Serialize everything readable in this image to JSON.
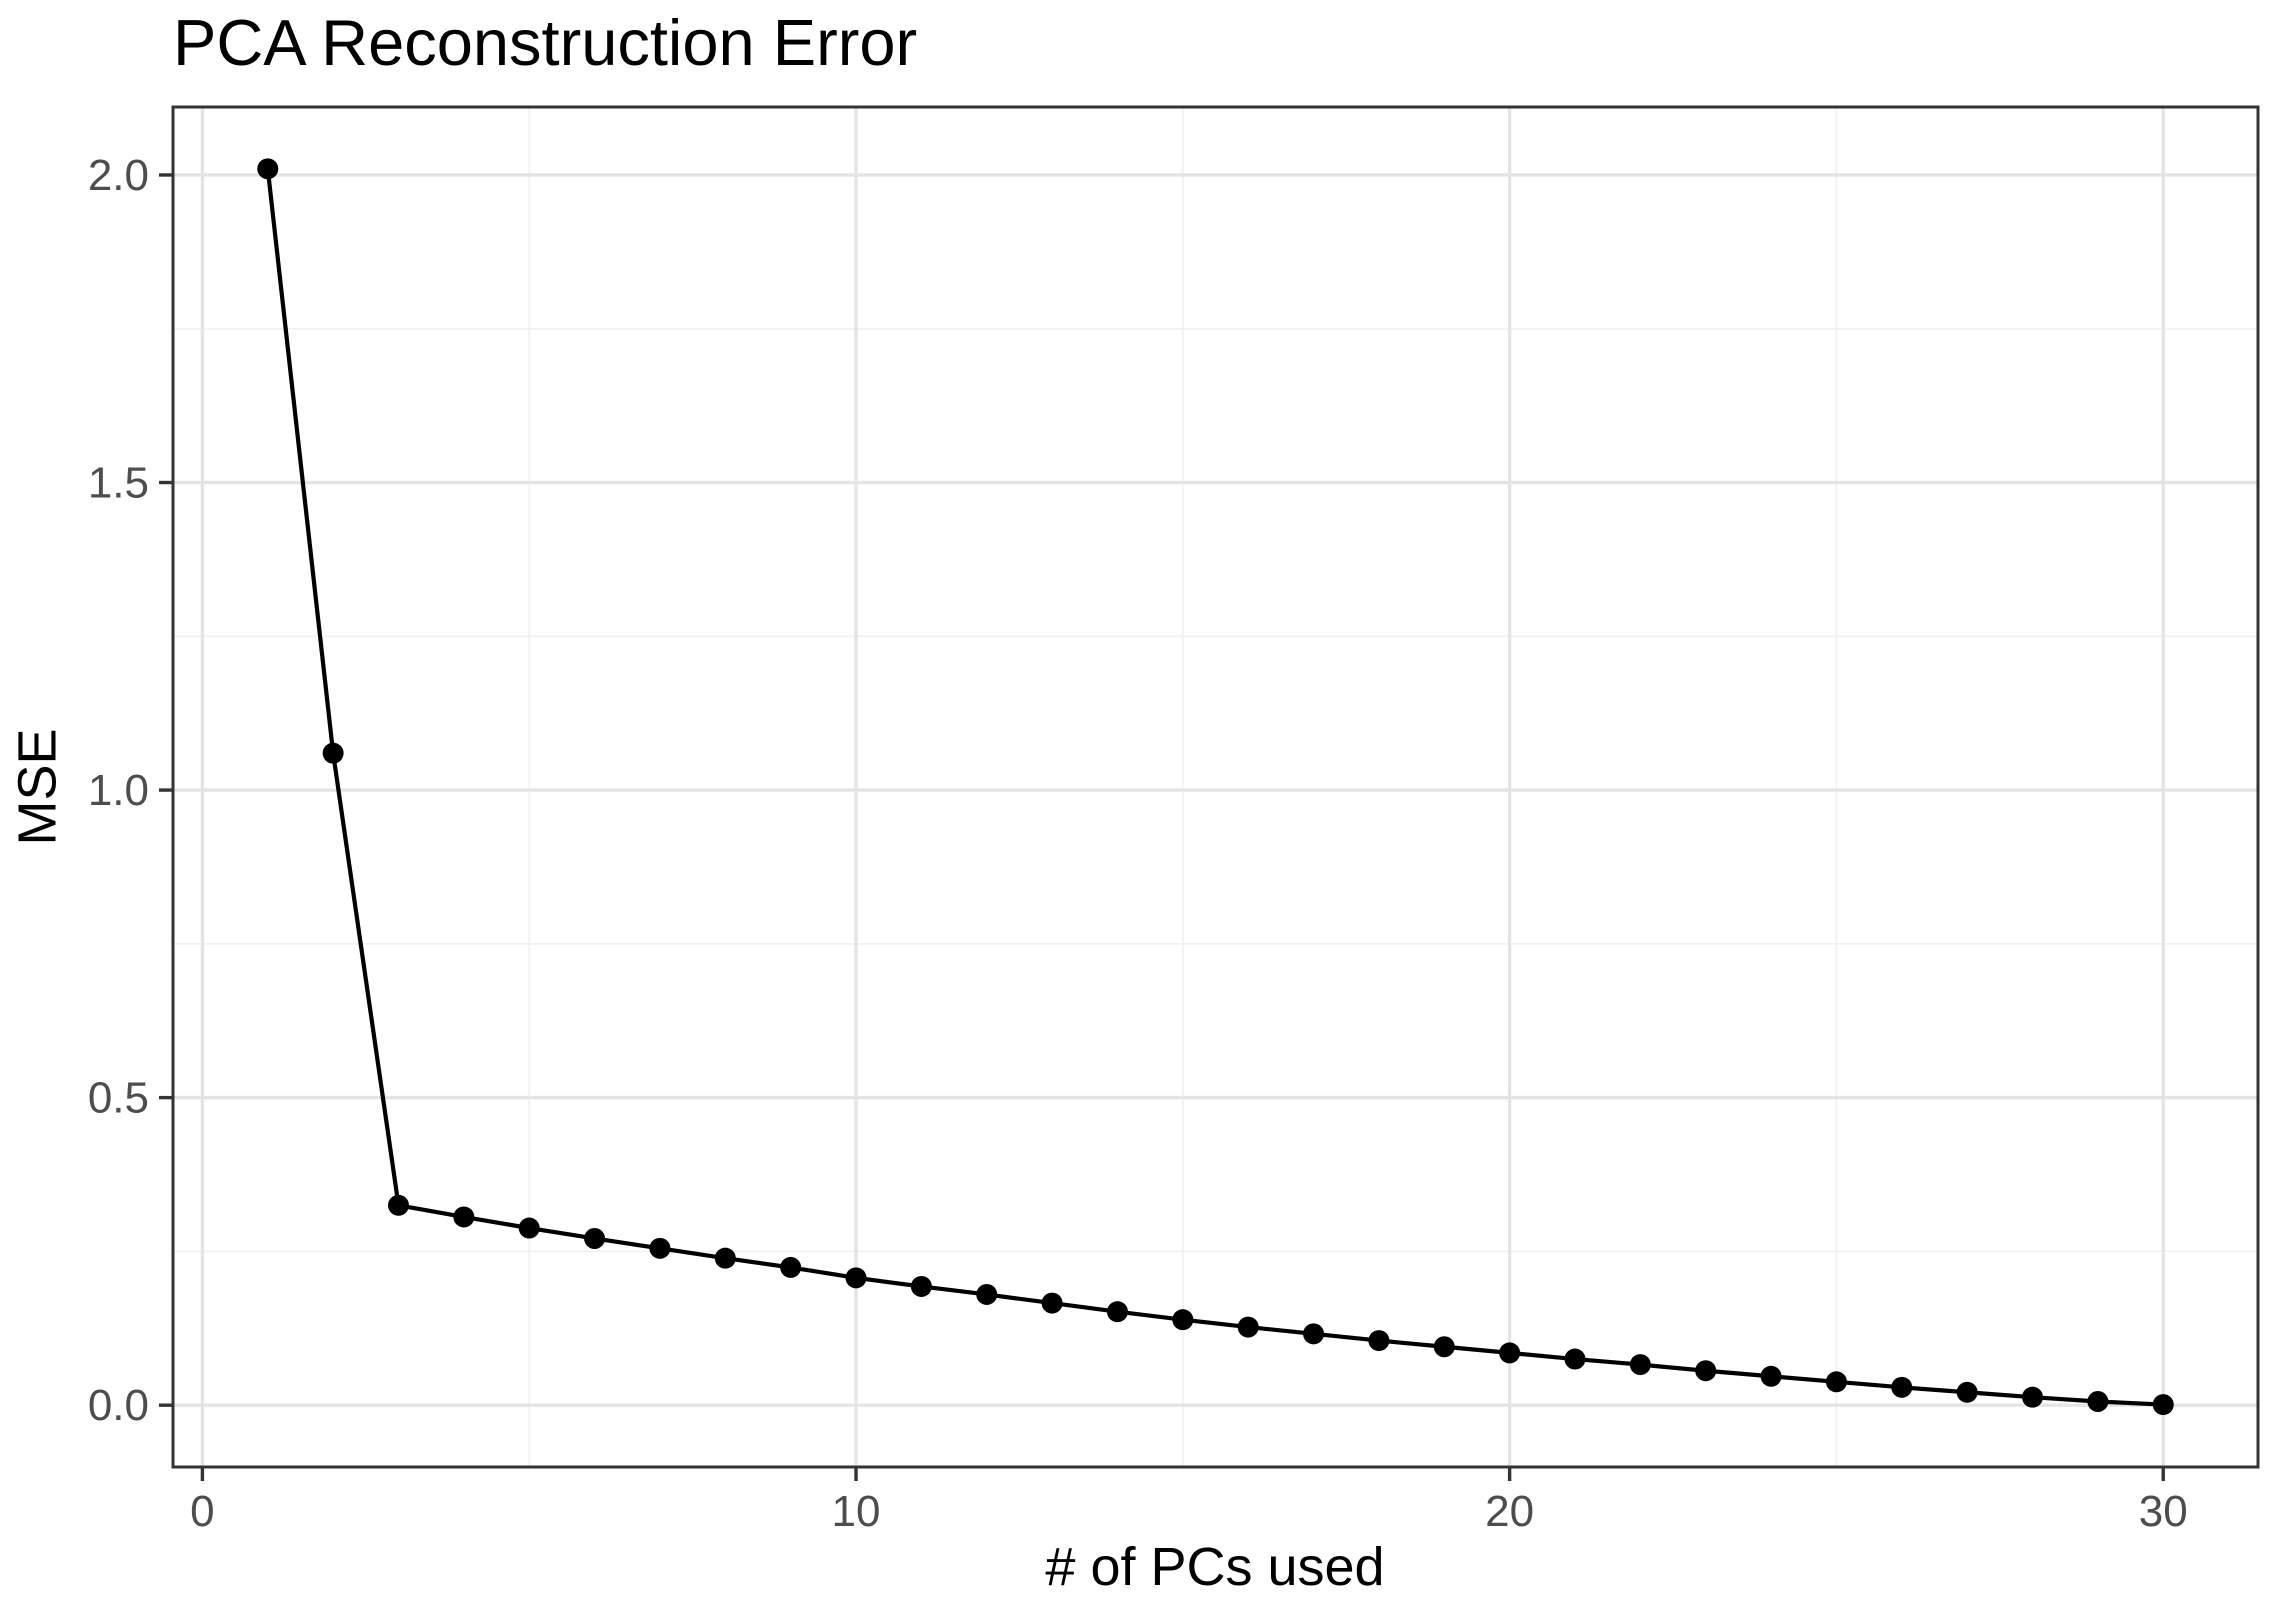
{
  "title": "PCA Reconstruction Error",
  "chart_data": {
    "type": "line",
    "title": "PCA Reconstruction Error",
    "xlabel": "# of PCs used",
    "ylabel": "MSE",
    "series": [
      {
        "name": "MSE",
        "x": [
          1,
          2,
          3,
          4,
          5,
          6,
          7,
          8,
          9,
          10,
          11,
          12,
          13,
          14,
          15,
          16,
          17,
          18,
          19,
          20,
          21,
          22,
          23,
          24,
          25,
          26,
          27,
          28,
          29,
          30
        ],
        "y": [
          2.01,
          1.06,
          0.325,
          0.306,
          0.288,
          0.271,
          0.255,
          0.239,
          0.224,
          0.207,
          0.193,
          0.18,
          0.166,
          0.152,
          0.139,
          0.127,
          0.116,
          0.105,
          0.095,
          0.085,
          0.075,
          0.066,
          0.056,
          0.047,
          0.038,
          0.029,
          0.021,
          0.013,
          0.006,
          0.001
        ]
      }
    ],
    "x_ticks": {
      "values": [
        0,
        10,
        20,
        30
      ],
      "labels": [
        "0",
        "10",
        "20",
        "30"
      ]
    },
    "y_ticks": {
      "values": [
        0.0,
        0.5,
        1.0,
        1.5,
        2.0
      ],
      "labels": [
        "0.0",
        "0.5",
        "1.0",
        "1.5",
        "2.0"
      ]
    },
    "x_minor": [
      5,
      15,
      25
    ],
    "y_minor": [
      0.25,
      0.75,
      1.25,
      1.75
    ],
    "xlim": [
      -0.45,
      31.45
    ],
    "ylim": [
      -0.1005,
      2.1105
    ],
    "grid": true,
    "legend_position": "none",
    "marker": "point",
    "colors": {
      "line": "#000000",
      "point": "#000000",
      "panel_border": "#333333",
      "tick": "#333333",
      "tick_label": "#4d4d4d",
      "grid_major": "#e4e4e4",
      "grid_minor": "#f1f1f1",
      "background": "#ffffff",
      "title_text": "#000000"
    }
  }
}
